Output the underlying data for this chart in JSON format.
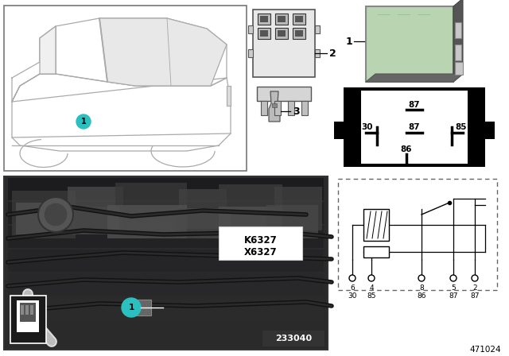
{
  "bg_color": "#ffffff",
  "part_number": "471024",
  "ref_number": "233040",
  "relay_code_line1": "K6327",
  "relay_code_line2": "X6327",
  "relay_color": "#b8d4b0",
  "teal_color": "#2bbfbf",
  "label1": "1",
  "label2": "2",
  "label3": "3",
  "pin_box_labels": [
    "87",
    "30",
    "87",
    "85",
    "86"
  ],
  "schematic_pins_top": [
    "6",
    "4",
    "8",
    "5",
    "2"
  ],
  "schematic_pins_bot": [
    "30",
    "85",
    "86",
    "87",
    "87"
  ],
  "car_line_color": "#aaaaaa",
  "connector_color": "#cccccc",
  "photo_bg": "#2a2a2a",
  "photo_dark": "#1a1a1a"
}
